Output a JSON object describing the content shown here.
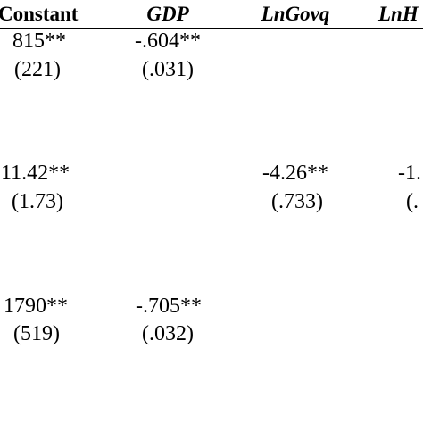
{
  "table": {
    "headers": [
      "Constant",
      "GDP",
      "LnGovq",
      "LnH"
    ],
    "rows": [
      {
        "coef": [
          "815**",
          "-.604**",
          "",
          ""
        ],
        "se": [
          "(221)",
          "(.031)",
          "",
          ""
        ]
      },
      {
        "coef": [
          "11.42**",
          "",
          "-4.26**",
          "-1."
        ],
        "se": [
          "(1.73)",
          "",
          "(.733)",
          "(."
        ]
      },
      {
        "coef": [
          "1790**",
          "-.705**",
          "",
          ""
        ],
        "se": [
          "(519)",
          "(.032)",
          "",
          ""
        ]
      }
    ]
  }
}
